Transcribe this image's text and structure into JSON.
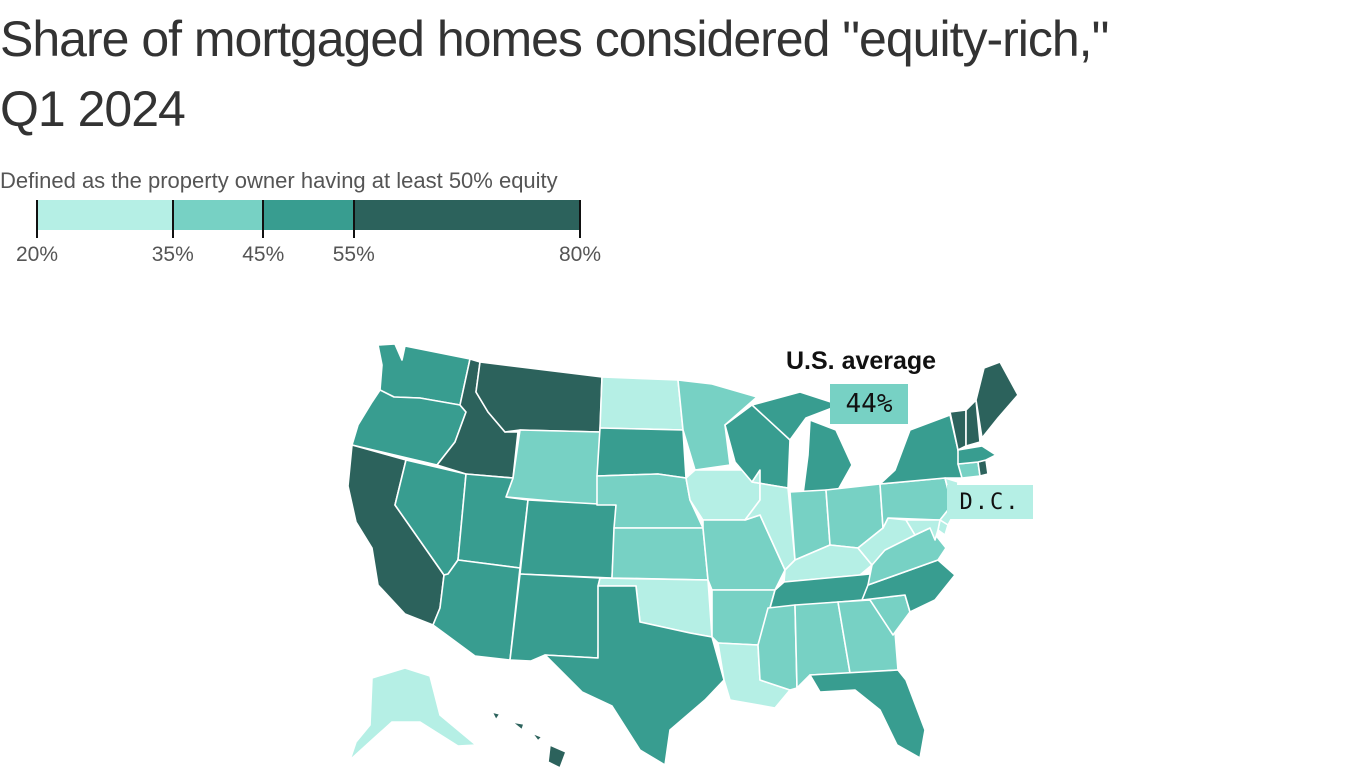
{
  "title_line1": "Share of mortgaged homes considered \"equity-rich,\"",
  "title_line2": "Q1 2024",
  "subtitle": "Defined as the property owner having at least 50% equity",
  "colors": {
    "bin1": "#b5efe5",
    "bin2": "#77d1c4",
    "bin3": "#389d90",
    "bin4": "#2c625c"
  },
  "legend": {
    "bins": [
      {
        "from": 20,
        "to": 35,
        "color": "#b5efe5"
      },
      {
        "from": 35,
        "to": 45,
        "color": "#77d1c4"
      },
      {
        "from": 45,
        "to": 55,
        "color": "#389d90"
      },
      {
        "from": 55,
        "to": 80,
        "color": "#2c625c"
      }
    ],
    "labels": [
      "20%",
      "35%",
      "45%",
      "55%",
      "80%"
    ]
  },
  "us_average": {
    "heading": "U.S. average",
    "value": "44%",
    "bin": 2
  },
  "dc": {
    "label": "D.C.",
    "bin": 1
  },
  "state_bins": {
    "WA": 3,
    "OR": 3,
    "CA": 4,
    "NV": 3,
    "ID": 4,
    "MT": 4,
    "WY": 2,
    "UT": 3,
    "AZ": 3,
    "CO": 3,
    "NM": 3,
    "ND": 1,
    "SD": 3,
    "NE": 2,
    "KS": 2,
    "OK": 1,
    "TX": 3,
    "MN": 2,
    "IA": 1,
    "MO": 2,
    "AR": 2,
    "LA": 1,
    "WI": 3,
    "IL": 1,
    "MI": 3,
    "IN": 2,
    "OH": 2,
    "KY": 1,
    "TN": 3,
    "MS": 2,
    "AL": 2,
    "GA": 2,
    "FL": 3,
    "SC": 2,
    "NC": 3,
    "VA": 2,
    "WV": 1,
    "PA": 2,
    "NY": 3,
    "VT": 4,
    "NH": 4,
    "ME": 4,
    "MA": 3,
    "CT": 2,
    "RI": 4,
    "NJ": 1,
    "DE": 1,
    "MD": 1,
    "AK": 1,
    "HI": 4
  }
}
